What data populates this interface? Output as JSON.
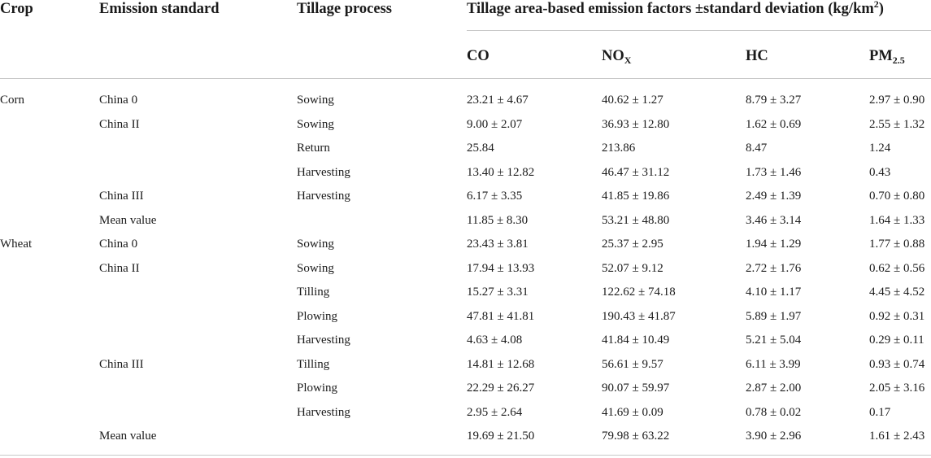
{
  "headers": {
    "crop": "Crop",
    "emission_standard": "Emission standard",
    "tillage_process": "Tillage process",
    "group_main": "Tillage area-based emission factors ±standard deviation (kg/km",
    "group_sup": "2",
    "group_close": ")",
    "co": "CO",
    "nox_main": "NO",
    "nox_sub": "X",
    "hc": "HC",
    "pm_main": "PM",
    "pm_sub": "2.5"
  },
  "rows": [
    {
      "crop": "Corn",
      "standard": "China 0",
      "process": "Sowing",
      "co": "23.21 ± 4.67",
      "nox": "40.62 ± 1.27",
      "hc": "8.79 ± 3.27",
      "pm": "2.97 ± 0.90"
    },
    {
      "crop": "",
      "standard": "China II",
      "process": "Sowing",
      "co": "9.00 ± 2.07",
      "nox": "36.93 ± 12.80",
      "hc": "1.62 ± 0.69",
      "pm": "2.55 ± 1.32"
    },
    {
      "crop": "",
      "standard": "",
      "process": "Return",
      "co": "25.84",
      "nox": "213.86",
      "hc": "8.47",
      "pm": "1.24"
    },
    {
      "crop": "",
      "standard": "",
      "process": "Harvesting",
      "co": "13.40 ± 12.82",
      "nox": "46.47 ± 31.12",
      "hc": "1.73 ± 1.46",
      "pm": "0.43"
    },
    {
      "crop": "",
      "standard": "China III",
      "process": "Harvesting",
      "co": "6.17 ± 3.35",
      "nox": "41.85 ± 19.86",
      "hc": "2.49 ± 1.39",
      "pm": "0.70 ± 0.80"
    },
    {
      "crop": "",
      "standard": "Mean value",
      "process": "",
      "co": "11.85 ± 8.30",
      "nox": "53.21 ± 48.80",
      "hc": "3.46 ± 3.14",
      "pm": "1.64 ± 1.33"
    },
    {
      "crop": "Wheat",
      "standard": "China 0",
      "process": "Sowing",
      "co": "23.43 ± 3.81",
      "nox": "25.37 ± 2.95",
      "hc": "1.94 ± 1.29",
      "pm": "1.77 ± 0.88"
    },
    {
      "crop": "",
      "standard": "China II",
      "process": "Sowing",
      "co": "17.94 ± 13.93",
      "nox": "52.07 ± 9.12",
      "hc": "2.72 ± 1.76",
      "pm": "0.62 ± 0.56"
    },
    {
      "crop": "",
      "standard": "",
      "process": "Tilling",
      "co": "15.27 ± 3.31",
      "nox": "122.62 ± 74.18",
      "hc": "4.10 ± 1.17",
      "pm": "4.45 ± 4.52"
    },
    {
      "crop": "",
      "standard": "",
      "process": "Plowing",
      "co": "47.81 ± 41.81",
      "nox": "190.43 ± 41.87",
      "hc": "5.89 ± 1.97",
      "pm": "0.92 ± 0.31"
    },
    {
      "crop": "",
      "standard": "",
      "process": "Harvesting",
      "co": "4.63 ± 4.08",
      "nox": "41.84 ± 10.49",
      "hc": "5.21 ± 5.04",
      "pm": "0.29 ± 0.11"
    },
    {
      "crop": "",
      "standard": "China III",
      "process": "Tilling",
      "co": "14.81 ± 12.68",
      "nox": "56.61 ± 9.57",
      "hc": "6.11 ± 3.99",
      "pm": "0.93 ± 0.74"
    },
    {
      "crop": "",
      "standard": "",
      "process": "Plowing",
      "co": "22.29 ± 26.27",
      "nox": "90.07 ± 59.97",
      "hc": "2.87 ± 2.00",
      "pm": "2.05 ± 3.16"
    },
    {
      "crop": "",
      "standard": "",
      "process": "Harvesting",
      "co": "2.95 ± 2.64",
      "nox": "41.69 ± 0.09",
      "hc": "0.78 ± 0.02",
      "pm": "0.17"
    },
    {
      "crop": "",
      "standard": "Mean value",
      "process": "",
      "co": "19.69 ± 21.50",
      "nox": "79.98 ± 63.22",
      "hc": "3.90 ± 2.96",
      "pm": "1.61 ± 2.43"
    }
  ]
}
